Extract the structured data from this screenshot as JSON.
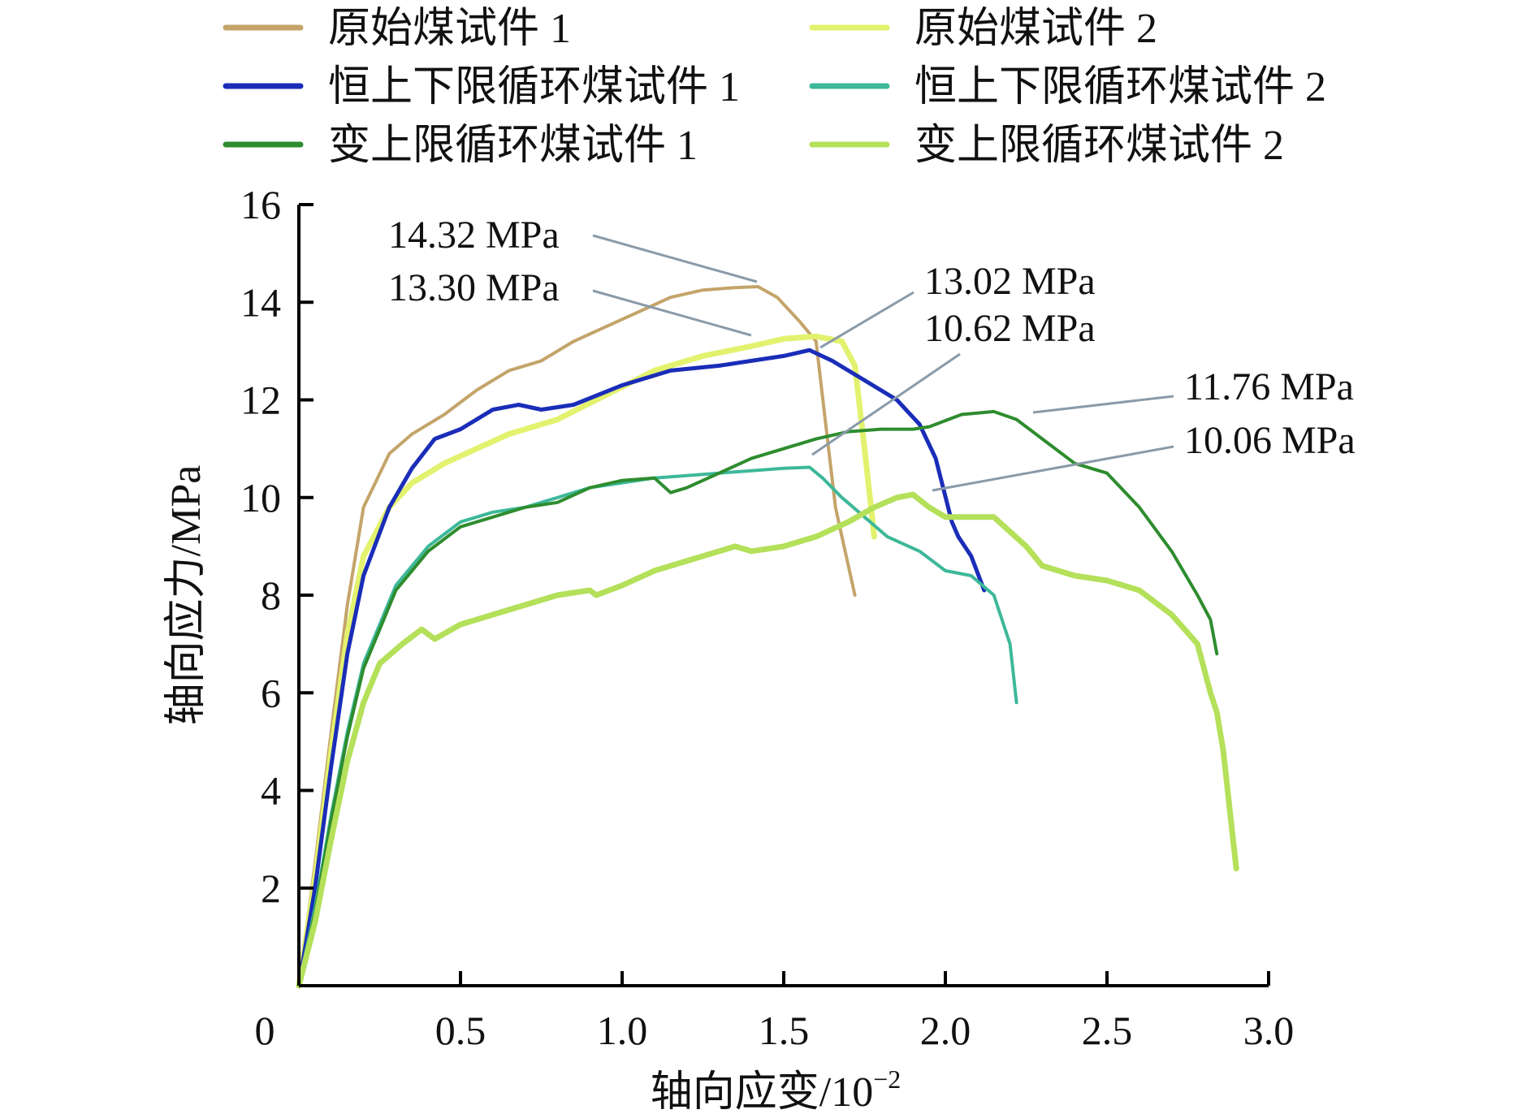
{
  "chart_data": {
    "type": "line",
    "title": "",
    "xlabel": "轴向应变/10",
    "xlabel_superscript": "−2",
    "ylabel": "轴向应力/MPa",
    "xlim": [
      0,
      3.0
    ],
    "ylim": [
      0,
      16
    ],
    "x_ticks": [
      "0.5",
      "1.0",
      "1.5",
      "2.0",
      "2.5",
      "3.0"
    ],
    "y_ticks": [
      "2",
      "4",
      "6",
      "8",
      "10",
      "12",
      "14",
      "16"
    ],
    "origin_label": "0",
    "legend_position": "top",
    "series": [
      {
        "name": "原始煤试件 1",
        "color": "#c4a46a",
        "x": [
          0,
          0.05,
          0.1,
          0.15,
          0.2,
          0.28,
          0.35,
          0.45,
          0.55,
          0.65,
          0.75,
          0.85,
          0.95,
          1.05,
          1.15,
          1.25,
          1.35,
          1.42,
          1.48,
          1.55,
          1.6,
          1.63,
          1.66,
          1.69,
          1.72
        ],
        "y": [
          0,
          2.5,
          5.2,
          7.8,
          9.8,
          10.9,
          11.3,
          11.7,
          12.2,
          12.6,
          12.8,
          13.2,
          13.5,
          13.8,
          14.1,
          14.25,
          14.3,
          14.32,
          14.1,
          13.6,
          13.2,
          11.5,
          9.8,
          8.9,
          8.0
        ]
      },
      {
        "name": "原始煤试件 2",
        "color": "#e2f26e",
        "x": [
          0,
          0.05,
          0.1,
          0.15,
          0.2,
          0.28,
          0.35,
          0.45,
          0.55,
          0.65,
          0.8,
          0.95,
          1.1,
          1.25,
          1.4,
          1.5,
          1.6,
          1.68,
          1.72,
          1.75,
          1.77,
          1.78
        ],
        "y": [
          0,
          2.2,
          4.8,
          7.2,
          8.8,
          9.8,
          10.3,
          10.7,
          11.0,
          11.3,
          11.6,
          12.1,
          12.6,
          12.9,
          13.1,
          13.25,
          13.3,
          13.2,
          12.7,
          11.0,
          9.8,
          9.2
        ]
      },
      {
        "name": "恒上下限循环煤试件 1",
        "color": "#1a2db8",
        "x": [
          0,
          0.05,
          0.1,
          0.15,
          0.2,
          0.28,
          0.35,
          0.42,
          0.5,
          0.6,
          0.68,
          0.75,
          0.85,
          1.0,
          1.15,
          1.3,
          1.4,
          1.5,
          1.58,
          1.65,
          1.75,
          1.85,
          1.92,
          1.97,
          2.02,
          2.04,
          2.08,
          2.12
        ],
        "y": [
          0,
          2.0,
          4.5,
          6.8,
          8.4,
          9.8,
          10.6,
          11.2,
          11.4,
          11.8,
          11.9,
          11.8,
          11.9,
          12.3,
          12.6,
          12.7,
          12.8,
          12.9,
          13.02,
          12.8,
          12.4,
          12.0,
          11.5,
          10.8,
          9.5,
          9.2,
          8.8,
          8.1
        ]
      },
      {
        "name": "恒上下限循环煤试件 2",
        "color": "#3db89a",
        "x": [
          0,
          0.05,
          0.1,
          0.15,
          0.2,
          0.3,
          0.4,
          0.5,
          0.6,
          0.7,
          0.8,
          0.9,
          1.0,
          1.1,
          1.2,
          1.3,
          1.4,
          1.5,
          1.58,
          1.62,
          1.68,
          1.75,
          1.82,
          1.92,
          2.0,
          2.08,
          2.15,
          2.2,
          2.22
        ],
        "y": [
          0,
          1.6,
          3.5,
          5.2,
          6.6,
          8.2,
          9.0,
          9.5,
          9.7,
          9.8,
          10.0,
          10.2,
          10.3,
          10.4,
          10.45,
          10.5,
          10.55,
          10.6,
          10.62,
          10.4,
          10.0,
          9.6,
          9.2,
          8.9,
          8.5,
          8.4,
          8.0,
          7.0,
          5.8
        ]
      },
      {
        "name": "变上限循环煤试件 1",
        "color": "#2e8c2e",
        "x": [
          0,
          0.05,
          0.1,
          0.15,
          0.2,
          0.3,
          0.4,
          0.5,
          0.6,
          0.7,
          0.8,
          0.9,
          1.0,
          1.1,
          1.15,
          1.2,
          1.3,
          1.4,
          1.5,
          1.6,
          1.7,
          1.8,
          1.9,
          1.95,
          2.05,
          2.15,
          2.22,
          2.3,
          2.4,
          2.5,
          2.6,
          2.7,
          2.78,
          2.82,
          2.84
        ],
        "y": [
          0,
          1.5,
          3.4,
          5.1,
          6.5,
          8.1,
          8.9,
          9.4,
          9.6,
          9.8,
          9.9,
          10.2,
          10.35,
          10.4,
          10.1,
          10.2,
          10.5,
          10.8,
          11.0,
          11.2,
          11.35,
          11.4,
          11.4,
          11.45,
          11.7,
          11.76,
          11.6,
          11.2,
          10.7,
          10.5,
          9.8,
          8.9,
          8.0,
          7.5,
          6.8
        ]
      },
      {
        "name": "变上限循环煤试件 2",
        "color": "#b4e05a",
        "x": [
          0,
          0.05,
          0.1,
          0.15,
          0.2,
          0.25,
          0.32,
          0.38,
          0.42,
          0.5,
          0.6,
          0.7,
          0.8,
          0.9,
          0.92,
          1.0,
          1.1,
          1.2,
          1.3,
          1.35,
          1.4,
          1.5,
          1.6,
          1.7,
          1.78,
          1.85,
          1.9,
          1.95,
          2.0,
          2.05,
          2.15,
          2.25,
          2.3,
          2.4,
          2.5,
          2.6,
          2.7,
          2.78,
          2.82,
          2.84,
          2.86,
          2.88,
          2.9
        ],
        "y": [
          0,
          1.3,
          3.0,
          4.6,
          5.8,
          6.6,
          7.0,
          7.3,
          7.1,
          7.4,
          7.6,
          7.8,
          8.0,
          8.1,
          8.0,
          8.2,
          8.5,
          8.7,
          8.9,
          9.0,
          8.9,
          9.0,
          9.2,
          9.5,
          9.8,
          10.0,
          10.06,
          9.8,
          9.6,
          9.6,
          9.6,
          9.0,
          8.6,
          8.4,
          8.3,
          8.1,
          7.6,
          7.0,
          6.0,
          5.6,
          4.8,
          3.6,
          2.4
        ]
      }
    ],
    "annotations": [
      {
        "text": "14.32 MPa",
        "target_series": "原始煤试件 1"
      },
      {
        "text": "13.30 MPa",
        "target_series": "原始煤试件 2"
      },
      {
        "text": "13.02 MPa",
        "target_series": "恒上下限循环煤试件 1"
      },
      {
        "text": "10.62 MPa",
        "target_series": "恒上下限循环煤试件 2"
      },
      {
        "text": "11.76 MPa",
        "target_series": "变上限循环煤试件 1"
      },
      {
        "text": "10.06 MPa",
        "target_series": "变上限循环煤试件 2"
      }
    ]
  }
}
